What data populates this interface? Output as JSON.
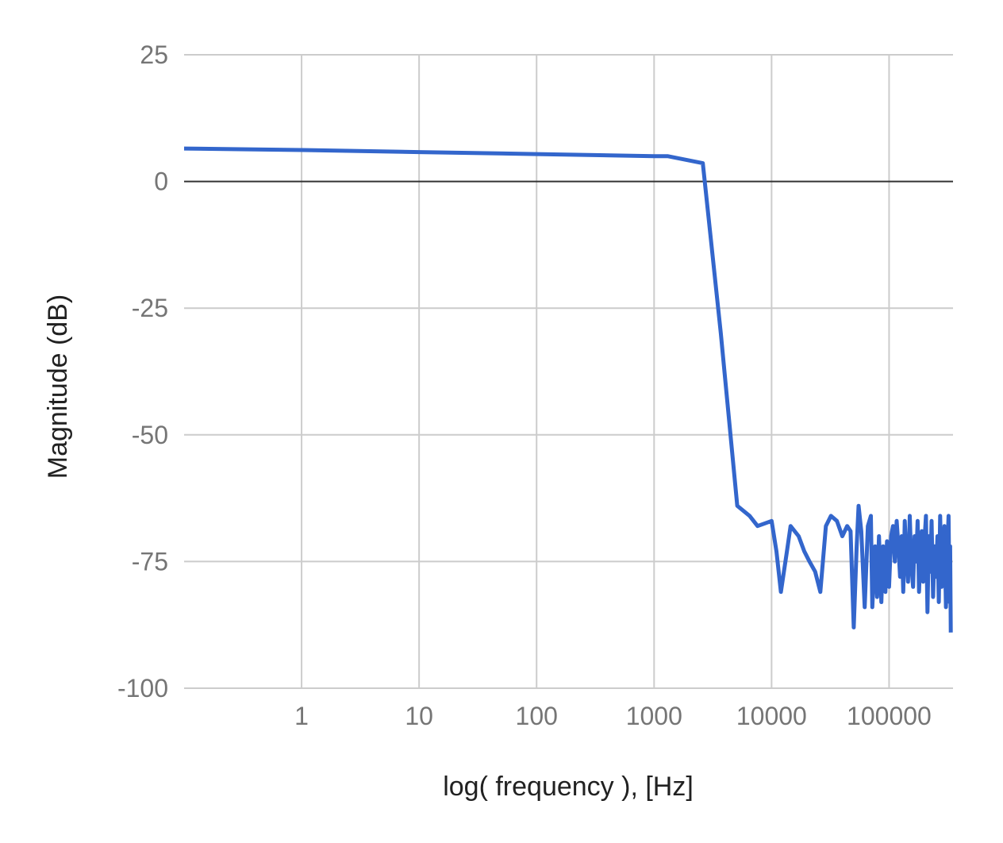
{
  "chart_data": {
    "type": "line",
    "xlabel": "log( frequency ), [Hz]",
    "ylabel": "Magnitude (dB)",
    "x_scale": "log",
    "x_ticks": [
      1,
      10,
      100,
      1000,
      10000,
      100000
    ],
    "x_tick_labels": [
      "1",
      "10",
      "100",
      "1000",
      "10000",
      "100000"
    ],
    "xlim": [
      0.1,
      350000
    ],
    "ylim": [
      -100,
      25
    ],
    "y_ticks": [
      25,
      0,
      -25,
      -50,
      -75,
      -100
    ],
    "y_tick_labels": [
      "25",
      "0",
      "-25",
      "-50",
      "-75",
      "-100"
    ],
    "grid": true,
    "legend": "none",
    "colors": {
      "series": "#3366cc",
      "grid": "#cccccc",
      "baseline": "#333333"
    },
    "series": [
      {
        "color": "#3366cc",
        "points": [
          [
            0.1,
            6.5
          ],
          [
            1,
            6.2
          ],
          [
            10,
            5.8
          ],
          [
            100,
            5.4
          ],
          [
            1000,
            5.0
          ],
          [
            1300,
            5.0
          ],
          [
            2600,
            3.6
          ],
          [
            3700,
            -30
          ],
          [
            5100,
            -64
          ],
          [
            6500,
            -66
          ],
          [
            7600,
            -68
          ],
          [
            10000,
            -67
          ],
          [
            11000,
            -73
          ],
          [
            12000,
            -81
          ],
          [
            13500,
            -73
          ],
          [
            14500,
            -68
          ],
          [
            17000,
            -70
          ],
          [
            19000,
            -73
          ],
          [
            21000,
            -75
          ],
          [
            23500,
            -77
          ],
          [
            26000,
            -81
          ],
          [
            29000,
            -68
          ],
          [
            32000,
            -66
          ],
          [
            36000,
            -67
          ],
          [
            40000,
            -70
          ],
          [
            44000,
            -68
          ],
          [
            47000,
            -69
          ],
          [
            50000,
            -88
          ],
          [
            53000,
            -72
          ],
          [
            55000,
            -64
          ],
          [
            58000,
            -69
          ],
          [
            62000,
            -84
          ],
          [
            66000,
            -68
          ],
          [
            70000,
            -66
          ],
          [
            72000,
            -84
          ],
          [
            76000,
            -72
          ],
          [
            79000,
            -82
          ],
          [
            82000,
            -70
          ],
          [
            86000,
            -83
          ],
          [
            89000,
            -72
          ],
          [
            93000,
            -81
          ],
          [
            96000,
            -71
          ],
          [
            100000,
            -80
          ],
          [
            104000,
            -70
          ],
          [
            108000,
            -68
          ],
          [
            112000,
            -75
          ],
          [
            116000,
            -67
          ],
          [
            120000,
            -72
          ],
          [
            124000,
            -78
          ],
          [
            128000,
            -70
          ],
          [
            132000,
            -81
          ],
          [
            136000,
            -67
          ],
          [
            140000,
            -74
          ],
          [
            145000,
            -79
          ],
          [
            150000,
            -66
          ],
          [
            155000,
            -76
          ],
          [
            160000,
            -80
          ],
          [
            165000,
            -70
          ],
          [
            170000,
            -75
          ],
          [
            175000,
            -67
          ],
          [
            180000,
            -81
          ],
          [
            185000,
            -72
          ],
          [
            190000,
            -69
          ],
          [
            195000,
            -79
          ],
          [
            200000,
            -71
          ],
          [
            206000,
            -66
          ],
          [
            212000,
            -85
          ],
          [
            218000,
            -70
          ],
          [
            224000,
            -77
          ],
          [
            230000,
            -67
          ],
          [
            237000,
            -82
          ],
          [
            244000,
            -72
          ],
          [
            251000,
            -78
          ],
          [
            258000,
            -70
          ],
          [
            265000,
            -83
          ],
          [
            272000,
            -66
          ],
          [
            280000,
            -80
          ],
          [
            288000,
            -74
          ],
          [
            296000,
            -68
          ],
          [
            305000,
            -84
          ],
          [
            313000,
            -73
          ],
          [
            321000,
            -66
          ],
          [
            327000,
            -83
          ],
          [
            331000,
            -72
          ],
          [
            335000,
            -89
          ]
        ]
      }
    ]
  }
}
